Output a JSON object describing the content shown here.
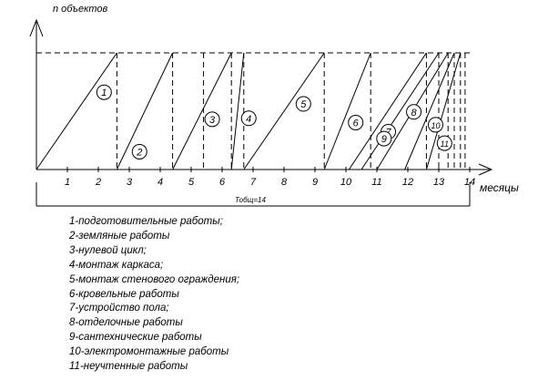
{
  "chart": {
    "y_axis_label": "n объектов",
    "x_axis_label": "месяцы",
    "total_duration_label": "Тобщ=14",
    "month_ticks": [
      "1",
      "2",
      "3",
      "4",
      "5",
      "6",
      "7",
      "8",
      "9",
      "10",
      "11",
      "12",
      "13",
      "14"
    ],
    "x_range": [
      0,
      14
    ],
    "activities": [
      {
        "id": "1",
        "start": 0,
        "end": 2.6
      },
      {
        "id": "2",
        "start": 2.6,
        "end": 4.4
      },
      {
        "id": "3",
        "start": 4.4,
        "end": 6.3
      },
      {
        "id": "4",
        "start": 6.3,
        "end": 6.7
      },
      {
        "id": "5",
        "start": 6.7,
        "end": 9.3
      },
      {
        "id": "6",
        "start": 9.3,
        "end": 10.8
      },
      {
        "id": "7",
        "start": 10.1,
        "end": 12.6
      },
      {
        "id": "8",
        "start": 10.5,
        "end": 13.0
      },
      {
        "id": "9",
        "start": 11.0,
        "end": 13.3
      },
      {
        "id": "10",
        "start": 11.9,
        "end": 13.5
      },
      {
        "id": "11",
        "start": 12.6,
        "end": 13.7
      }
    ],
    "dashed_verticals": [
      2.6,
      4.4,
      5.4,
      6.3,
      6.7,
      9.3,
      10.8,
      12.6,
      13.0,
      13.3,
      13.5,
      13.7,
      13.85
    ]
  },
  "legend": [
    "1-подготовительные работы;",
    "2-земляные работы",
    "3-нулевой цикл;",
    "4-монтаж каркаса;",
    "5-монтаж стенового ограждения;",
    "6-кровельные работы",
    "7-устройство пола;",
    "8-отделочные работы",
    "9-сантехнические работы",
    "10-электромонтажные работы",
    "11-неучтенные работы"
  ]
}
